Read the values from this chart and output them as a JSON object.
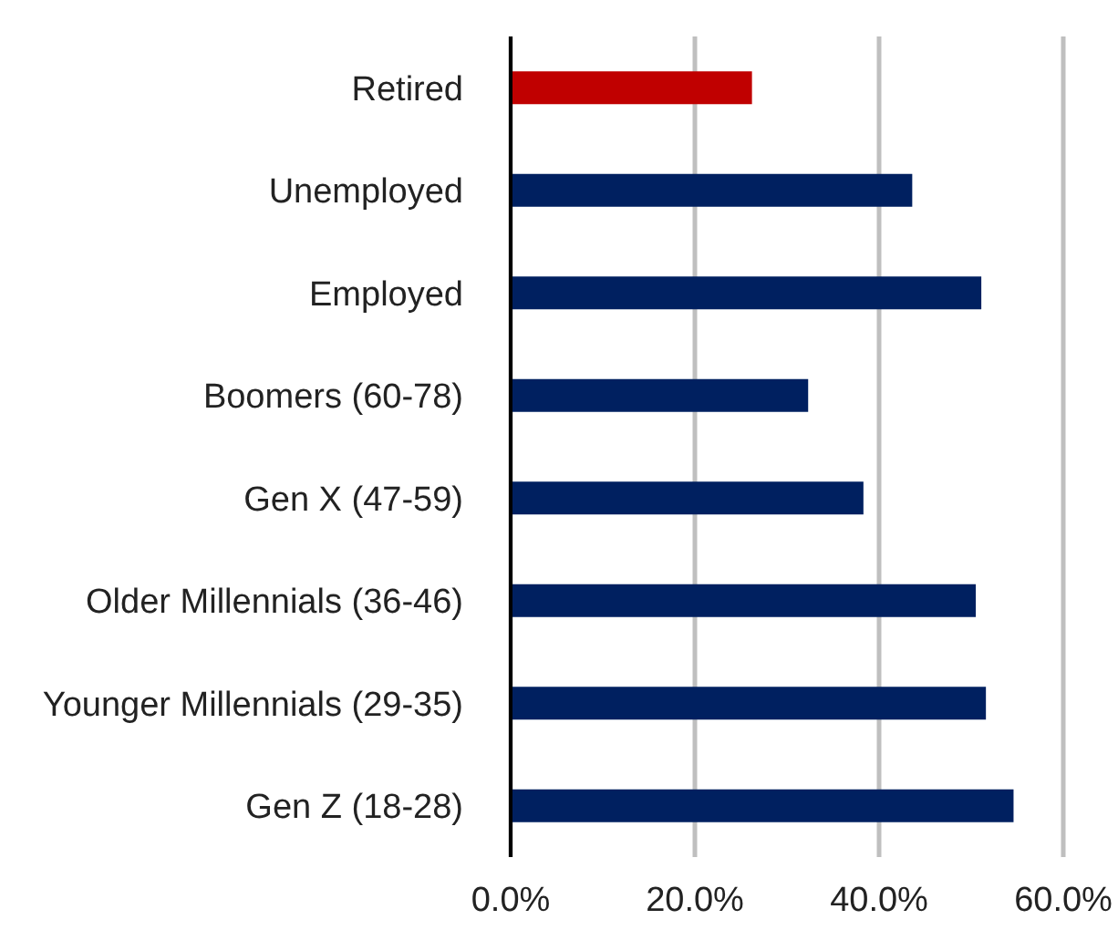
{
  "chart_data": {
    "type": "bar",
    "orientation": "horizontal",
    "categories": [
      "Retired",
      "Unemployed",
      "Employed",
      "Boomers (60-78)",
      "Gen X (47-59)",
      "Older Millennials (36-46)",
      "Younger Millennials (29-35)",
      "Gen Z (18-28)"
    ],
    "values": [
      26.2,
      43.6,
      51.1,
      32.3,
      38.3,
      50.5,
      51.6,
      54.6
    ],
    "colors": [
      "#c00000",
      "#002060",
      "#002060",
      "#002060",
      "#002060",
      "#002060",
      "#002060",
      "#002060"
    ],
    "xlim": [
      0,
      60
    ],
    "xticks": [
      {
        "value": 0,
        "label": "0.0%"
      },
      {
        "value": 20,
        "label": "20.0%"
      },
      {
        "value": 40,
        "label": "40.0%"
      },
      {
        "value": 60,
        "label": "60.0%"
      }
    ],
    "grid": "x"
  }
}
